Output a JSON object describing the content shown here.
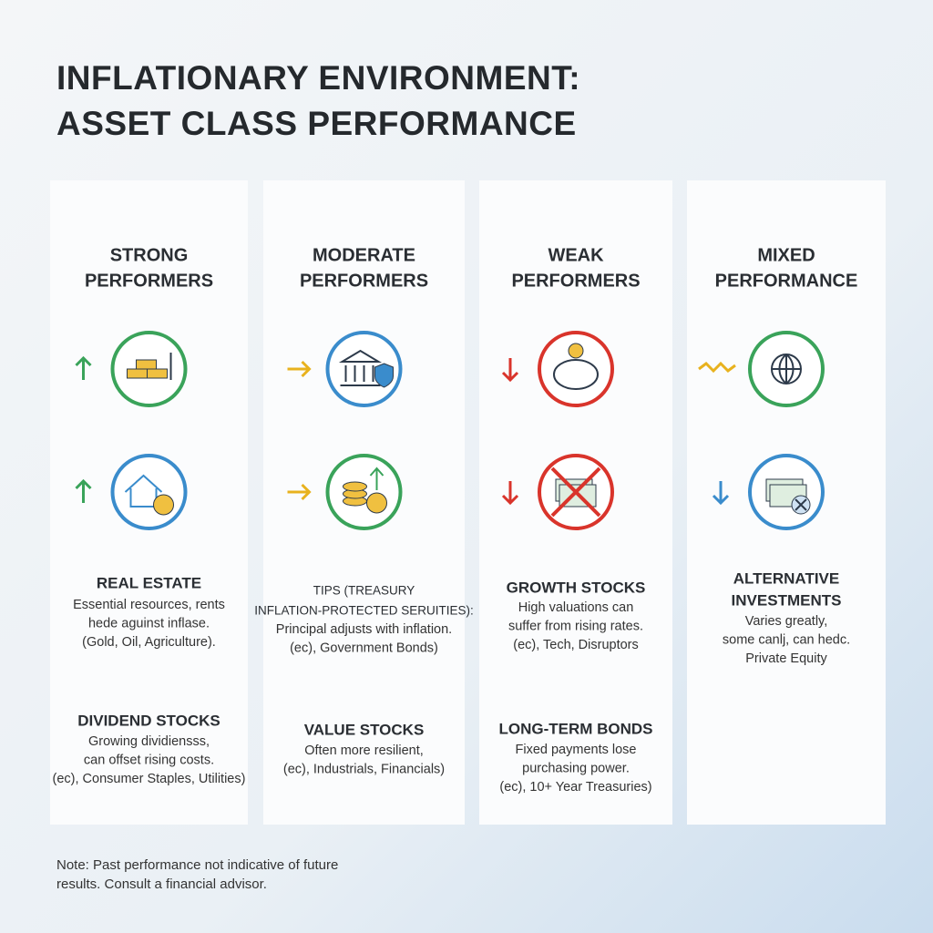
{
  "header": {
    "title": [
      "INFLATIONARY ENVIRONMENT:",
      "ASSET CLASS PERFORMANCE"
    ]
  },
  "columns": [
    {
      "heading": [
        "STRONG",
        "PERFORMERS"
      ],
      "items": [
        {
          "label": [
            "REAL ESTATE"
          ],
          "description": [
            "Essential resources, rents",
            "hede aguinst inflase.",
            "(Gold, Oil, Agriculture)."
          ]
        },
        {
          "label": [
            "DIVIDEND STOCKS"
          ],
          "description": [
            "Growing dividiensss,",
            "can offset rising costs.",
            "(ec), Consumer Staples, Utilities)"
          ]
        }
      ]
    },
    {
      "heading": [
        "MODERATE",
        "PERFORMERS"
      ],
      "items": [
        {
          "label": [
            "TIPS (TREASURY",
            "INFLATION-PROTECTED SERUITIES):"
          ],
          "description": [
            "Principal adjusts with inflation.",
            "(ec), Government Bonds)"
          ]
        },
        {
          "label": [
            "VALUE STOCKS"
          ],
          "description": [
            "Often more resilient,",
            "(ec), Industrials, Financials)"
          ]
        }
      ]
    },
    {
      "heading": [
        "WEAK",
        "PERFORMERS"
      ],
      "items": [
        {
          "label": [
            "GROWTH STOCKS"
          ],
          "description": [
            "High valuations can",
            "suffer from rising rates.",
            "(ec), Tech, Disruptors"
          ]
        },
        {
          "label": [
            "LONG-TERM BONDS"
          ],
          "description": [
            "Fixed payments lose",
            "purchasing power.",
            "(ec), 10+ Year Treasuries)"
          ]
        }
      ]
    },
    {
      "heading": [
        "MIXED",
        "PERFORMANCE"
      ],
      "items": [
        {
          "label": [
            "ALTERNATIVE",
            "INVESTMENTS"
          ],
          "description": [
            "Varies greatly,",
            "some canlj, can hedc.",
            "Private Equity"
          ]
        }
      ]
    }
  ],
  "note": [
    "Note: Past performance not indicative of future",
    "results. Consult a financial advisor."
  ]
}
